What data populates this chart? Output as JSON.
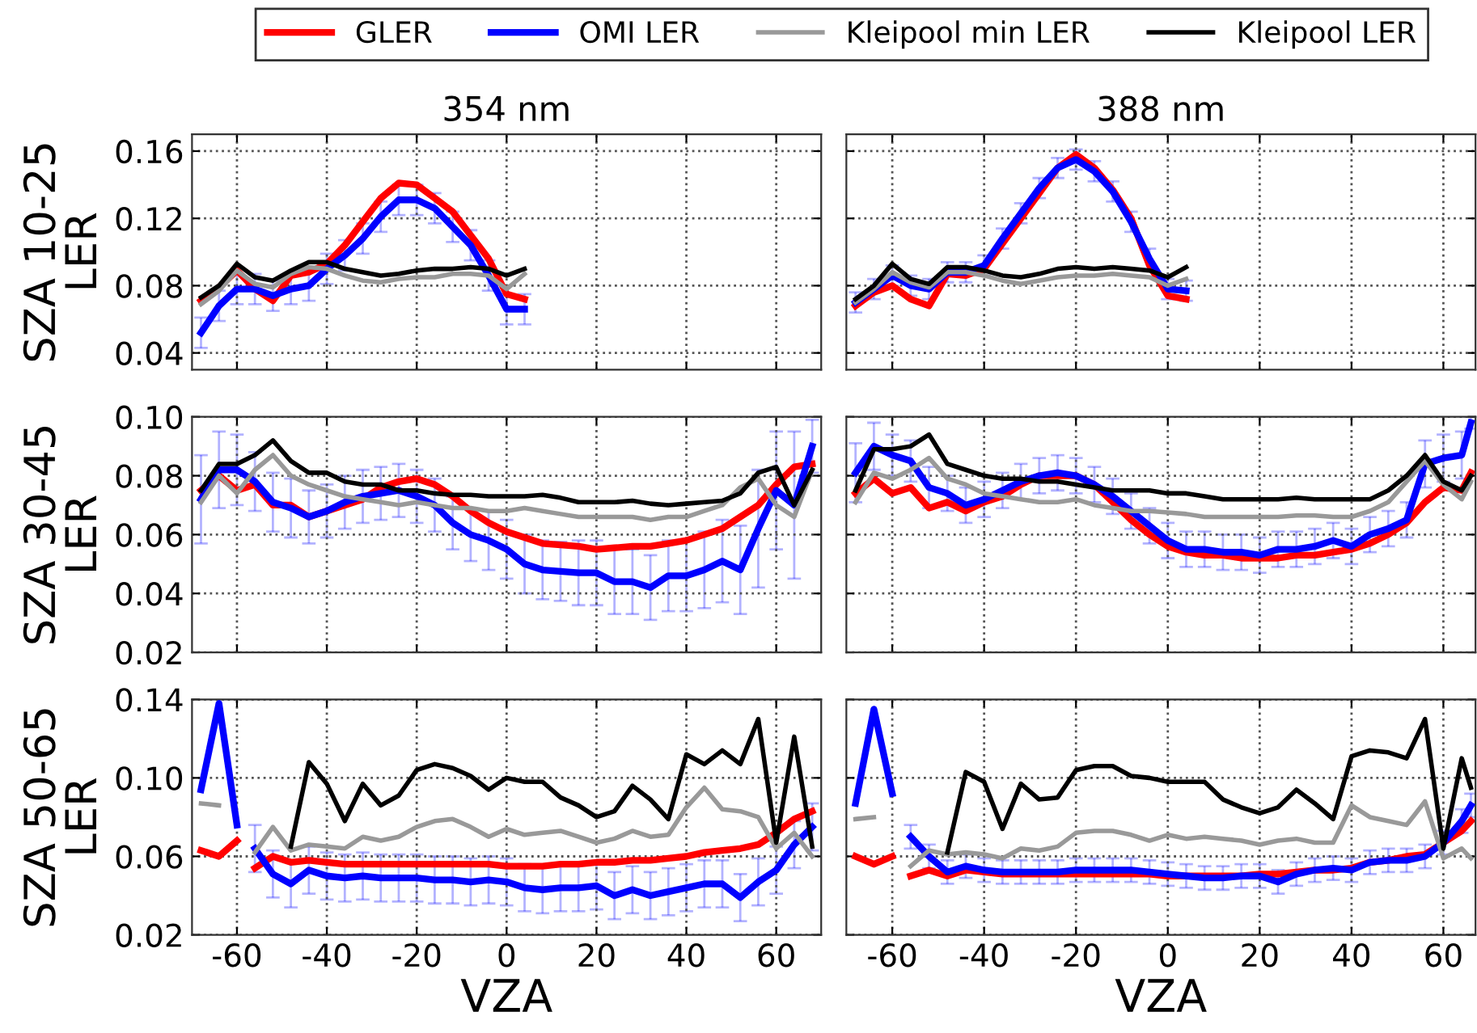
{
  "chart_data": [
    {
      "type": "line",
      "title": "354 nm",
      "ylabel": "SZA 10-25\nLER",
      "xlim": [
        -70,
        70
      ],
      "xticks": [
        -60,
        -40,
        -20,
        0,
        20,
        40,
        60
      ],
      "ylim": [
        0.03,
        0.17
      ],
      "yticks": [
        0.04,
        0.08,
        0.12,
        0.16
      ],
      "grid": true,
      "legend": "top",
      "tick_labels": "y",
      "x": [
        -68,
        -64,
        -60,
        -56,
        -52,
        -48,
        -44,
        -40,
        -36,
        -32,
        -28,
        -24,
        -20,
        -16,
        -12,
        -8,
        -4,
        0,
        4
      ],
      "series": [
        {
          "name": "GLER",
          "color": "#ff0000",
          "values": [
            0.071,
            0.079,
            0.089,
            0.078,
            0.071,
            0.086,
            0.088,
            0.093,
            0.104,
            0.118,
            0.132,
            0.141,
            0.14,
            0.132,
            0.124,
            0.11,
            0.096,
            0.075,
            0.072
          ]
        },
        {
          "name": "OMI LER",
          "color": "#0000ff",
          "values": [
            0.052,
            0.068,
            0.078,
            0.078,
            0.074,
            0.078,
            0.08,
            0.09,
            0.098,
            0.108,
            0.121,
            0.131,
            0.131,
            0.126,
            0.115,
            0.104,
            0.086,
            0.066,
            0.066
          ],
          "errors": [
            0.009,
            0.009,
            0.009,
            0.009,
            0.009,
            0.009,
            0.009,
            0.009,
            0.009,
            0.009,
            0.009,
            0.009,
            0.009,
            0.009,
            0.009,
            0.009,
            0.009,
            0.009,
            0.009
          ]
        },
        {
          "name": "Kleipool min LER",
          "color": "#999999",
          "values": [
            0.069,
            0.077,
            0.089,
            0.081,
            0.079,
            0.087,
            0.091,
            0.09,
            0.086,
            0.083,
            0.082,
            0.084,
            0.085,
            0.085,
            0.087,
            0.087,
            0.086,
            0.078,
            0.087
          ]
        },
        {
          "name": "Kleipool LER",
          "color": "#000000",
          "values": [
            0.073,
            0.08,
            0.093,
            0.085,
            0.083,
            0.089,
            0.094,
            0.094,
            0.09,
            0.088,
            0.086,
            0.087,
            0.089,
            0.09,
            0.09,
            0.091,
            0.09,
            0.086,
            0.09
          ]
        }
      ]
    },
    {
      "type": "line",
      "title": "388 nm",
      "xlim": [
        -70,
        67
      ],
      "xticks": [
        -60,
        -40,
        -20,
        0,
        20,
        40,
        60
      ],
      "ylim": [
        0.03,
        0.17
      ],
      "yticks": [
        0.04,
        0.08,
        0.12,
        0.16
      ],
      "grid": true,
      "tick_labels": false,
      "x": [
        -68,
        -64,
        -60,
        -56,
        -52,
        -48,
        -44,
        -40,
        -36,
        -32,
        -28,
        -24,
        -20,
        -16,
        -12,
        -8,
        -4,
        0,
        4
      ],
      "series": [
        {
          "color": "#ff0000",
          "values": [
            0.068,
            0.076,
            0.08,
            0.072,
            0.068,
            0.087,
            0.086,
            0.09,
            0.105,
            0.12,
            0.135,
            0.15,
            0.158,
            0.15,
            0.137,
            0.12,
            0.092,
            0.074,
            0.072
          ]
        },
        {
          "color": "#0000ff",
          "values": [
            0.07,
            0.078,
            0.086,
            0.08,
            0.078,
            0.088,
            0.088,
            0.092,
            0.108,
            0.123,
            0.138,
            0.15,
            0.155,
            0.148,
            0.136,
            0.118,
            0.096,
            0.078,
            0.077
          ],
          "errors": [
            0.006,
            0.006,
            0.006,
            0.006,
            0.006,
            0.006,
            0.006,
            0.006,
            0.006,
            0.006,
            0.006,
            0.006,
            0.006,
            0.006,
            0.006,
            0.006,
            0.006,
            0.006,
            0.006
          ]
        },
        {
          "color": "#999999",
          "values": [
            0.07,
            0.078,
            0.088,
            0.082,
            0.079,
            0.088,
            0.088,
            0.086,
            0.083,
            0.081,
            0.083,
            0.085,
            0.086,
            0.086,
            0.087,
            0.086,
            0.085,
            0.08,
            0.084
          ]
        },
        {
          "color": "#000000",
          "values": [
            0.072,
            0.08,
            0.093,
            0.084,
            0.081,
            0.091,
            0.091,
            0.089,
            0.086,
            0.085,
            0.087,
            0.09,
            0.091,
            0.09,
            0.091,
            0.09,
            0.089,
            0.085,
            0.091
          ]
        }
      ]
    },
    {
      "type": "line",
      "ylabel": "SZA 30-45\nLER",
      "xlim": [
        -70,
        70
      ],
      "xticks": [
        -60,
        -40,
        -20,
        0,
        20,
        40,
        60
      ],
      "ylim": [
        0.02,
        0.1
      ],
      "yticks": [
        0.02,
        0.04,
        0.06,
        0.08,
        {
          "value": 0.1,
          "label": "0.10"
        }
      ],
      "grid": true,
      "tick_labels": "y",
      "x": [
        -68,
        -64,
        -60,
        -56,
        -52,
        -48,
        -44,
        -40,
        -36,
        -32,
        -28,
        -24,
        -20,
        -16,
        -12,
        -8,
        -4,
        0,
        4,
        8,
        12,
        16,
        20,
        24,
        28,
        32,
        36,
        40,
        44,
        48,
        52,
        56,
        60,
        64,
        68
      ],
      "series": [
        {
          "color": "#ff0000",
          "values": [
            0.075,
            0.08,
            0.075,
            0.077,
            0.07,
            0.07,
            0.066,
            0.068,
            0.07,
            0.072,
            0.076,
            0.078,
            0.079,
            0.077,
            0.073,
            0.068,
            0.064,
            0.061,
            0.059,
            0.057,
            0.0565,
            0.056,
            0.055,
            0.0555,
            0.056,
            0.056,
            0.057,
            0.058,
            0.06,
            0.062,
            0.066,
            0.07,
            0.077,
            0.083,
            0.084
          ]
        },
        {
          "color": "#0000ff",
          "values": [
            0.072,
            0.082,
            0.082,
            0.078,
            0.071,
            0.069,
            0.066,
            0.068,
            0.071,
            0.073,
            0.074,
            0.075,
            0.073,
            0.07,
            0.064,
            0.06,
            0.058,
            0.055,
            0.05,
            0.048,
            0.0475,
            0.047,
            0.047,
            0.044,
            0.044,
            0.042,
            0.046,
            0.046,
            0.048,
            0.051,
            0.048,
            0.062,
            0.075,
            0.07,
            0.09
          ],
          "errors": [
            0.015,
            0.013,
            0.012,
            0.01,
            0.01,
            0.01,
            0.009,
            0.009,
            0.009,
            0.009,
            0.009,
            0.009,
            0.009,
            0.009,
            0.009,
            0.009,
            0.01,
            0.01,
            0.01,
            0.01,
            0.01,
            0.011,
            0.011,
            0.011,
            0.011,
            0.011,
            0.012,
            0.012,
            0.013,
            0.014,
            0.015,
            0.02,
            0.02,
            0.025,
            0.009
          ]
        },
        {
          "color": "#999999",
          "values": [
            0.071,
            0.08,
            0.074,
            0.082,
            0.087,
            0.08,
            0.077,
            0.075,
            0.073,
            0.072,
            0.071,
            0.07,
            0.071,
            0.07,
            0.069,
            0.069,
            0.068,
            0.068,
            0.069,
            0.068,
            0.067,
            0.066,
            0.066,
            0.066,
            0.066,
            0.065,
            0.066,
            0.066,
            0.068,
            0.07,
            0.076,
            0.079,
            0.07,
            0.066,
            0.082
          ]
        },
        {
          "color": "#000000",
          "values": [
            0.075,
            0.084,
            0.084,
            0.087,
            0.092,
            0.085,
            0.081,
            0.081,
            0.078,
            0.077,
            0.077,
            0.075,
            0.075,
            0.074,
            0.0735,
            0.0735,
            0.073,
            0.073,
            0.073,
            0.0735,
            0.0725,
            0.071,
            0.071,
            0.071,
            0.0715,
            0.0705,
            0.07,
            0.0705,
            0.071,
            0.0715,
            0.074,
            0.081,
            0.083,
            0.07,
            0.082
          ]
        }
      ]
    },
    {
      "type": "line",
      "xlim": [
        -70,
        67
      ],
      "xticks": [
        -60,
        -40,
        -20,
        0,
        20,
        40,
        60
      ],
      "ylim": [
        0.02,
        0.1
      ],
      "yticks": [
        0.02,
        0.04,
        0.06,
        0.08,
        0.1
      ],
      "grid": true,
      "tick_labels": false,
      "x": [
        -68,
        -64,
        -60,
        -56,
        -52,
        -48,
        -44,
        -40,
        -36,
        -32,
        -28,
        -24,
        -20,
        -16,
        -12,
        -8,
        -4,
        0,
        4,
        8,
        12,
        16,
        20,
        24,
        28,
        32,
        36,
        40,
        44,
        48,
        52,
        56,
        60,
        64,
        66
      ],
      "series": [
        {
          "color": "#ff0000",
          "values": [
            0.074,
            0.079,
            0.074,
            0.076,
            0.069,
            0.071,
            0.068,
            0.071,
            0.073,
            0.077,
            0.08,
            0.08,
            0.08,
            0.077,
            0.071,
            0.065,
            0.06,
            0.056,
            0.054,
            0.053,
            0.053,
            0.052,
            0.052,
            0.052,
            0.053,
            0.053,
            0.054,
            0.055,
            0.057,
            0.06,
            0.064,
            0.071,
            0.076,
            0.075,
            0.081
          ]
        },
        {
          "color": "#0000ff",
          "values": [
            0.081,
            0.09,
            0.087,
            0.085,
            0.076,
            0.074,
            0.07,
            0.072,
            0.075,
            0.078,
            0.08,
            0.081,
            0.08,
            0.077,
            0.073,
            0.068,
            0.063,
            0.058,
            0.055,
            0.055,
            0.054,
            0.054,
            0.053,
            0.055,
            0.055,
            0.056,
            0.058,
            0.056,
            0.06,
            0.062,
            0.065,
            0.084,
            0.086,
            0.087,
            0.098
          ],
          "errors": [
            0.01,
            0.008,
            0.007,
            0.007,
            0.007,
            0.006,
            0.006,
            0.006,
            0.006,
            0.006,
            0.006,
            0.006,
            0.006,
            0.006,
            0.006,
            0.006,
            0.006,
            0.006,
            0.006,
            0.006,
            0.006,
            0.006,
            0.006,
            0.006,
            0.006,
            0.006,
            0.006,
            0.006,
            0.006,
            0.006,
            0.006,
            0.008,
            0.008,
            0.008,
            0.002
          ]
        },
        {
          "color": "#999999",
          "values": [
            0.071,
            0.081,
            0.079,
            0.082,
            0.086,
            0.079,
            0.077,
            0.074,
            0.073,
            0.072,
            0.071,
            0.071,
            0.072,
            0.07,
            0.069,
            0.068,
            0.068,
            0.0675,
            0.067,
            0.066,
            0.066,
            0.066,
            0.066,
            0.066,
            0.0665,
            0.0665,
            0.066,
            0.066,
            0.068,
            0.071,
            0.078,
            0.085,
            0.077,
            0.072,
            0.078
          ]
        },
        {
          "color": "#000000",
          "values": [
            0.075,
            0.089,
            0.089,
            0.09,
            0.094,
            0.084,
            0.082,
            0.08,
            0.079,
            0.079,
            0.078,
            0.078,
            0.077,
            0.076,
            0.075,
            0.075,
            0.075,
            0.074,
            0.074,
            0.073,
            0.072,
            0.072,
            0.072,
            0.072,
            0.0725,
            0.072,
            0.072,
            0.072,
            0.072,
            0.075,
            0.08,
            0.087,
            0.078,
            0.075,
            0.08
          ]
        }
      ]
    },
    {
      "type": "line",
      "ylabel": "SZA 50-65\nLER",
      "xlabel": "VZA",
      "xlim": [
        -70,
        70
      ],
      "xticks": [
        -60,
        -40,
        -20,
        0,
        20,
        40,
        60
      ],
      "ylim": [
        0.02,
        0.14
      ],
      "yticks": [
        0.02,
        0.06,
        {
          "value": 0.1,
          "label": "0.10"
        },
        0.14
      ],
      "grid": true,
      "x": [
        -68,
        -64,
        -60,
        -58,
        -56,
        -52,
        -48,
        -44,
        -40,
        -36,
        -32,
        -28,
        -24,
        -20,
        -16,
        -12,
        -8,
        -4,
        0,
        4,
        8,
        12,
        16,
        20,
        24,
        28,
        32,
        36,
        40,
        44,
        48,
        52,
        56,
        60,
        64,
        68
      ],
      "series": [
        {
          "color": "#ff0000",
          "values": [
            0.063,
            0.06,
            0.068,
            null,
            0.054,
            0.06,
            0.057,
            0.058,
            0.057,
            0.056,
            0.056,
            0.056,
            0.056,
            0.056,
            0.056,
            0.056,
            0.056,
            0.056,
            0.055,
            0.055,
            0.055,
            0.056,
            0.056,
            0.057,
            0.057,
            0.058,
            0.058,
            0.059,
            0.06,
            0.062,
            0.063,
            0.064,
            0.066,
            0.072,
            0.079,
            0.083
          ]
        },
        {
          "color": "#0000ff",
          "values": [
            0.094,
            0.138,
            0.076,
            null,
            0.064,
            0.051,
            0.046,
            0.053,
            0.05,
            0.049,
            0.05,
            0.049,
            0.049,
            0.049,
            0.048,
            0.048,
            0.047,
            0.048,
            0.047,
            0.044,
            0.043,
            0.044,
            0.044,
            0.045,
            0.04,
            0.043,
            0.04,
            0.042,
            0.044,
            0.046,
            0.046,
            0.039,
            0.047,
            0.053,
            0.066,
            0.075
          ],
          "errors": [
            null,
            null,
            null,
            null,
            0.012,
            0.012,
            0.012,
            0.012,
            0.012,
            0.012,
            0.012,
            0.012,
            0.012,
            0.012,
            0.012,
            0.012,
            0.012,
            0.012,
            0.012,
            0.012,
            0.012,
            0.012,
            0.012,
            0.012,
            0.012,
            0.012,
            0.012,
            0.012,
            0.012,
            0.012,
            0.012,
            0.012,
            0.012,
            0.012,
            0.012,
            0.012
          ]
        },
        {
          "color": "#999999",
          "values": [
            0.087,
            0.086,
            null,
            null,
            0.062,
            0.075,
            0.063,
            0.066,
            0.065,
            0.064,
            0.07,
            0.068,
            0.07,
            0.075,
            0.078,
            0.079,
            0.075,
            0.07,
            0.074,
            0.071,
            0.072,
            0.073,
            0.07,
            0.067,
            0.069,
            0.073,
            0.07,
            0.071,
            0.085,
            0.095,
            0.084,
            0.083,
            0.08,
            0.064,
            0.072,
            0.06
          ]
        },
        {
          "color": "#000000",
          "values": [
            null,
            null,
            null,
            null,
            null,
            null,
            0.065,
            0.108,
            0.097,
            0.078,
            0.097,
            0.086,
            0.091,
            0.104,
            0.107,
            0.105,
            0.101,
            0.094,
            0.1,
            0.098,
            0.098,
            0.09,
            0.086,
            0.08,
            0.083,
            0.096,
            0.089,
            0.079,
            0.112,
            0.107,
            0.114,
            0.107,
            0.13,
            0.067,
            0.121,
            0.065
          ]
        }
      ]
    },
    {
      "type": "line",
      "xlabel": "VZA",
      "xlim": [
        -70,
        67
      ],
      "xticks": [
        -60,
        -40,
        -20,
        0,
        20,
        40,
        60
      ],
      "ylim": [
        0.02,
        0.14
      ],
      "yticks": [
        0.02,
        0.06,
        0.1,
        0.14
      ],
      "grid": true,
      "tick_labels": "x",
      "x": [
        -68,
        -64,
        -60,
        -58,
        -56,
        -52,
        -48,
        -44,
        -40,
        -36,
        -32,
        -28,
        -24,
        -20,
        -16,
        -12,
        -8,
        -4,
        0,
        4,
        8,
        12,
        16,
        20,
        24,
        28,
        32,
        36,
        40,
        44,
        48,
        52,
        56,
        60,
        64,
        66
      ],
      "series": [
        {
          "color": "#ff0000",
          "values": [
            0.06,
            0.056,
            0.06,
            null,
            0.05,
            0.053,
            0.05,
            0.053,
            0.052,
            0.051,
            0.051,
            0.051,
            0.051,
            0.051,
            0.051,
            0.051,
            0.051,
            0.051,
            0.05,
            0.05,
            0.05,
            0.05,
            0.05,
            0.051,
            0.051,
            0.052,
            0.053,
            0.053,
            0.054,
            0.057,
            0.058,
            0.06,
            0.061,
            0.067,
            0.073,
            0.078
          ]
        },
        {
          "color": "#0000ff",
          "values": [
            0.087,
            0.135,
            0.092,
            null,
            0.07,
            0.06,
            0.052,
            0.055,
            0.053,
            0.052,
            0.052,
            0.052,
            0.052,
            0.053,
            0.053,
            0.053,
            0.053,
            0.052,
            0.051,
            0.05,
            0.049,
            0.049,
            0.05,
            0.05,
            0.047,
            0.051,
            0.053,
            0.054,
            0.053,
            0.057,
            0.058,
            0.058,
            0.06,
            0.067,
            0.078,
            0.086
          ],
          "errors": [
            null,
            null,
            null,
            null,
            0.006,
            0.006,
            0.006,
            0.006,
            0.006,
            0.006,
            0.006,
            0.006,
            0.006,
            0.006,
            0.006,
            0.006,
            0.006,
            0.006,
            0.006,
            0.006,
            0.006,
            0.006,
            0.006,
            0.006,
            0.006,
            0.006,
            0.006,
            0.006,
            0.006,
            0.006,
            0.006,
            0.006,
            0.006,
            0.006,
            0.006,
            0.006
          ]
        },
        {
          "color": "#999999",
          "values": [
            0.079,
            0.08,
            null,
            null,
            0.055,
            0.063,
            0.061,
            0.062,
            0.061,
            0.059,
            0.064,
            0.063,
            0.065,
            0.072,
            0.073,
            0.073,
            0.071,
            0.068,
            0.071,
            0.069,
            0.07,
            0.069,
            0.068,
            0.066,
            0.068,
            0.069,
            0.067,
            0.067,
            0.086,
            0.08,
            0.078,
            0.076,
            0.088,
            0.059,
            0.064,
            0.059
          ]
        },
        {
          "color": "#000000",
          "values": [
            null,
            null,
            null,
            null,
            null,
            null,
            0.062,
            0.103,
            0.098,
            0.074,
            0.097,
            0.089,
            0.09,
            0.104,
            0.106,
            0.106,
            0.101,
            0.1,
            0.098,
            0.098,
            0.098,
            0.089,
            0.085,
            0.082,
            0.085,
            0.094,
            0.087,
            0.079,
            0.111,
            0.114,
            0.113,
            0.11,
            0.13,
            0.064,
            0.11,
            0.095
          ]
        }
      ]
    }
  ]
}
